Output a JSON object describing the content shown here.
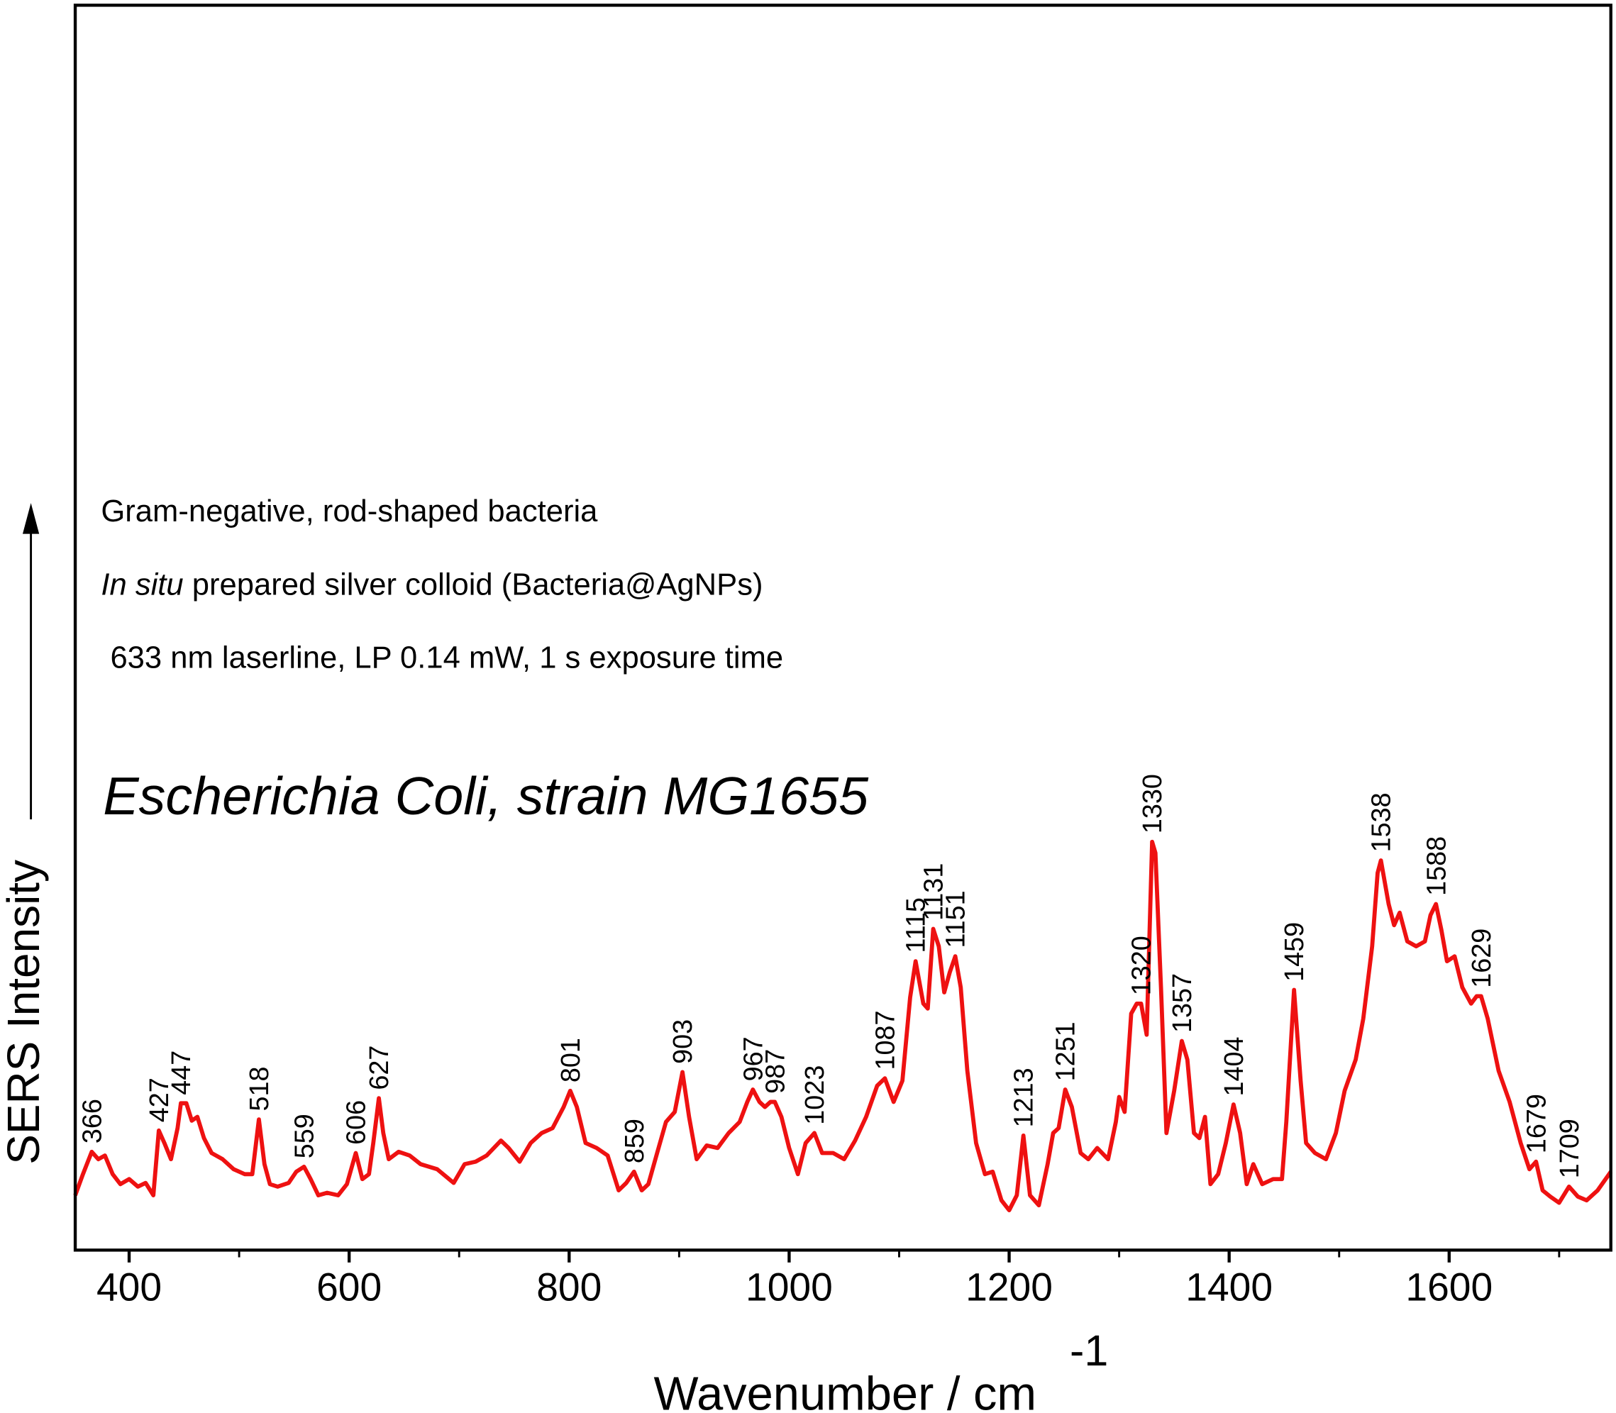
{
  "chart_data": {
    "type": "line",
    "title": "Escherichia Coli, strain MG1655",
    "annotations": {
      "shape": "Gram-negative, rod-shaped bacteria",
      "prep_italic": "In situ",
      "prep_rest": " prepared silver colloid (Bacteria@AgNPs)",
      "conditions": "633 nm laserline, LP 0.14 mW, 1 s exposure time"
    },
    "xlabel": "Wavenumber / cm",
    "xlabel_sup": "-1",
    "ylabel": "SERS Intensity",
    "color": "#ee1111",
    "title_color": "#ee1111",
    "shape_color": "#1a1ae0",
    "xlim": [
      351,
      1747
    ],
    "xticks": [
      400,
      600,
      800,
      1000,
      1200,
      1400,
      1600
    ],
    "xticks_minor": [
      500,
      700,
      900,
      1100,
      1300,
      1500,
      1700
    ],
    "ylim": [
      0,
      100
    ],
    "peaks": [
      366,
      427,
      447,
      518,
      559,
      606,
      627,
      801,
      859,
      903,
      967,
      987,
      1023,
      1087,
      1115,
      1131,
      1151,
      1213,
      1251,
      1320,
      1330,
      1357,
      1404,
      1459,
      1538,
      1588,
      1629,
      1679,
      1709
    ],
    "x": [
      351,
      358,
      366,
      372,
      378,
      385,
      392,
      400,
      408,
      415,
      422,
      427,
      432,
      438,
      444,
      447,
      452,
      457,
      462,
      468,
      475,
      485,
      495,
      505,
      512,
      518,
      523,
      528,
      535,
      545,
      552,
      559,
      565,
      572,
      580,
      590,
      598,
      606,
      612,
      618,
      622,
      627,
      631,
      636,
      645,
      655,
      665,
      680,
      695,
      705,
      715,
      725,
      738,
      745,
      755,
      765,
      775,
      785,
      795,
      801,
      807,
      815,
      825,
      835,
      845,
      852,
      859,
      866,
      872,
      880,
      888,
      896,
      903,
      909,
      916,
      925,
      935,
      945,
      955,
      962,
      967,
      973,
      978,
      983,
      987,
      993,
      1000,
      1008,
      1015,
      1023,
      1030,
      1040,
      1050,
      1060,
      1070,
      1080,
      1087,
      1095,
      1103,
      1110,
      1115,
      1122,
      1126,
      1131,
      1136,
      1141,
      1146,
      1151,
      1156,
      1162,
      1170,
      1178,
      1185,
      1193,
      1200,
      1207,
      1213,
      1219,
      1227,
      1235,
      1240,
      1245,
      1251,
      1257,
      1265,
      1272,
      1280,
      1290,
      1297,
      1300,
      1305,
      1311,
      1316,
      1320,
      1325,
      1330,
      1333,
      1338,
      1343,
      1350,
      1357,
      1362,
      1368,
      1373,
      1378,
      1383,
      1390,
      1397,
      1404,
      1410,
      1416,
      1422,
      1430,
      1440,
      1448,
      1452,
      1459,
      1465,
      1470,
      1478,
      1488,
      1497,
      1505,
      1515,
      1522,
      1530,
      1535,
      1538,
      1545,
      1550,
      1555,
      1562,
      1570,
      1578,
      1583,
      1588,
      1593,
      1598,
      1605,
      1612,
      1620,
      1625,
      1629,
      1635,
      1645,
      1655,
      1665,
      1673,
      1679,
      1685,
      1692,
      1700,
      1709,
      1717,
      1725,
      1735,
      1747
    ],
    "values": [
      4.4,
      6.1,
      7.9,
      7.3,
      7.6,
      6.1,
      5.3,
      5.7,
      5.1,
      5.4,
      4.4,
      9.6,
      8.6,
      7.3,
      9.8,
      11.8,
      11.8,
      10.4,
      10.7,
      9,
      7.8,
      7.3,
      6.5,
      6.1,
      6.1,
      10.5,
      6.9,
      5.3,
      5.1,
      5.4,
      6.3,
      6.7,
      5.7,
      4.4,
      4.6,
      4.4,
      5.3,
      7.8,
      5.7,
      6.1,
      8.6,
      12.2,
      9.4,
      7.3,
      7.9,
      7.6,
      6.9,
      6.5,
      5.4,
      6.9,
      7.1,
      7.6,
      8.8,
      8.2,
      7.1,
      8.6,
      9.4,
      9.8,
      11.5,
      12.8,
      11.5,
      8.6,
      8.2,
      7.6,
      4.8,
      5.4,
      6.3,
      4.8,
      5.3,
      7.8,
      10.3,
      11.1,
      14.3,
      10.7,
      7.3,
      8.4,
      8.2,
      9.4,
      10.3,
      11.9,
      12.9,
      11.9,
      11.5,
      11.9,
      11.9,
      10.7,
      8.2,
      6.1,
      8.6,
      9.4,
      7.8,
      7.8,
      7.3,
      8.8,
      10.7,
      13.2,
      13.8,
      11.9,
      13.6,
      20.3,
      23.2,
      19.8,
      19.4,
      25.8,
      24.4,
      20.7,
      22.3,
      23.6,
      21.1,
      14.4,
      8.6,
      6.1,
      6.3,
      4,
      3.2,
      4.4,
      9.2,
      4.4,
      3.6,
      6.9,
      9.4,
      9.8,
      12.9,
      11.5,
      7.8,
      7.3,
      8.2,
      7.3,
      10.3,
      12.3,
      11.1,
      19,
      19.8,
      19.8,
      17.3,
      32.8,
      31.9,
      21.1,
      9.4,
      12.8,
      16.8,
      15.3,
      9.4,
      9,
      10.7,
      5.3,
      6.1,
      8.6,
      11.7,
      9.4,
      5.3,
      6.9,
      5.3,
      5.7,
      5.7,
      10.3,
      20.9,
      13.6,
      8.6,
      7.8,
      7.3,
      9.4,
      12.8,
      15.3,
      18.6,
      24.4,
      30.3,
      31.3,
      27.8,
      26.1,
      27.1,
      24.8,
      24.4,
      24.8,
      26.9,
      27.8,
      25.7,
      23.2,
      23.6,
      21.1,
      19.8,
      20.4,
      20.4,
      18.6,
      14.4,
      11.9,
      8.6,
      6.5,
      7.1,
      4.8,
      4.3,
      3.8,
      5.1,
      4.3,
      4,
      4.8,
      6.3
    ]
  }
}
